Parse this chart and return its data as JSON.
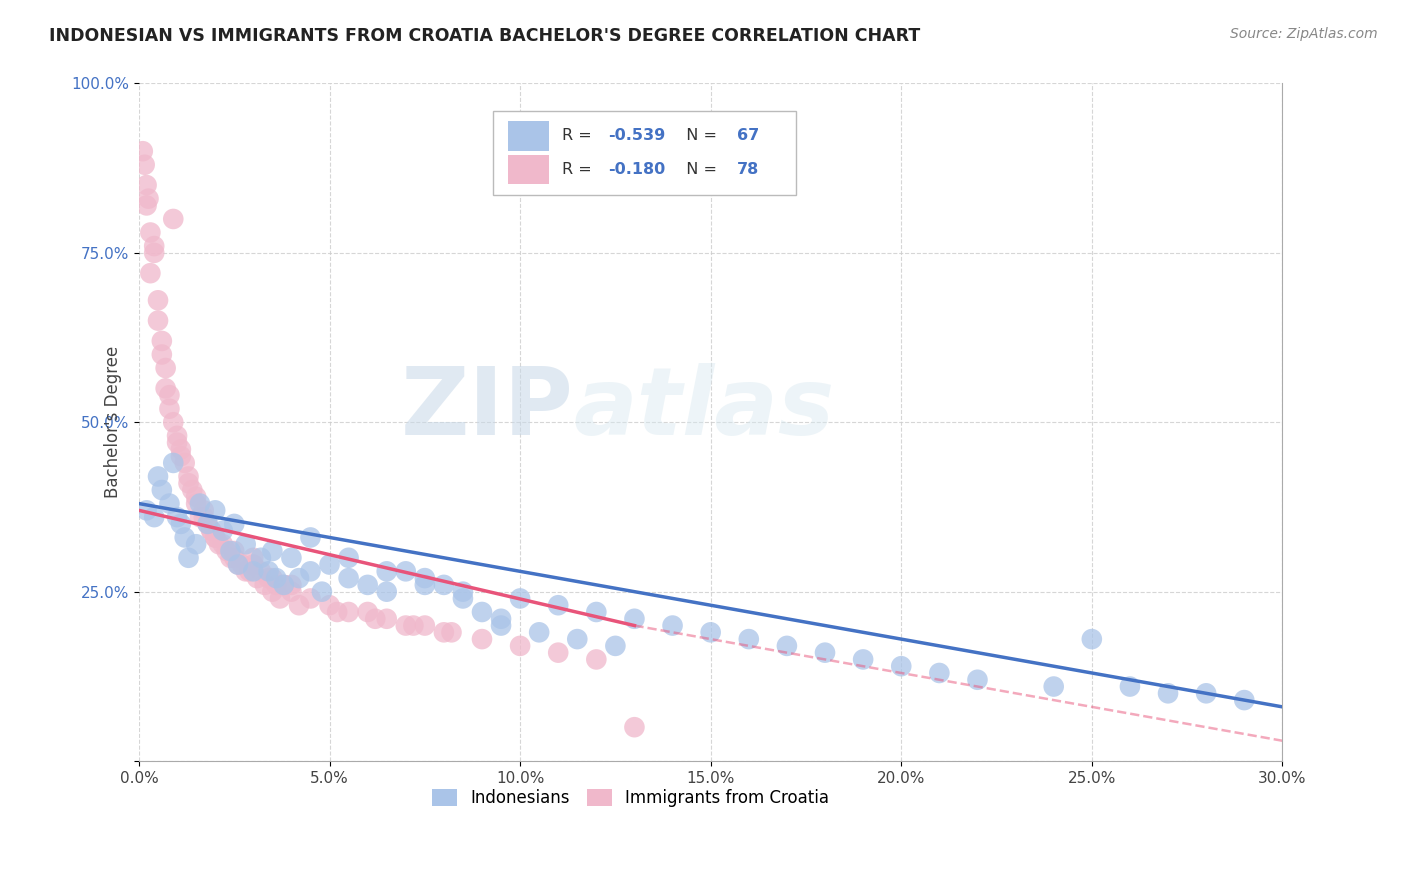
{
  "title": "INDONESIAN VS IMMIGRANTS FROM CROATIA BACHELOR'S DEGREE CORRELATION CHART",
  "source": "Source: ZipAtlas.com",
  "ylabel": "Bachelor's Degree",
  "blue_color": "#4472c4",
  "pink_color": "#e8547a",
  "blue_scatter_color": "#aac4e8",
  "pink_scatter_color": "#f0b8cb",
  "watermark_zip": "ZIP",
  "watermark_atlas": "atlas",
  "background_color": "#ffffff",
  "grid_color": "#cccccc",
  "blue_R": "-0.539",
  "blue_N": "67",
  "pink_R": "-0.180",
  "pink_N": "78",
  "blue_line": [
    [
      0.0,
      38.0
    ],
    [
      30.0,
      8.0
    ]
  ],
  "pink_line_solid": [
    [
      0.0,
      37.0
    ],
    [
      13.0,
      20.0
    ]
  ],
  "pink_line_dash": [
    [
      13.0,
      20.0
    ],
    [
      30.0,
      3.0
    ]
  ],
  "blue_scatter_x": [
    0.2,
    0.4,
    0.5,
    0.6,
    0.8,
    0.9,
    1.0,
    1.1,
    1.2,
    1.3,
    1.5,
    1.6,
    1.8,
    2.0,
    2.2,
    2.4,
    2.6,
    2.8,
    3.0,
    3.2,
    3.4,
    3.6,
    3.8,
    4.0,
    4.2,
    4.5,
    4.8,
    5.0,
    5.5,
    6.0,
    6.5,
    7.0,
    7.5,
    8.0,
    8.5,
    9.0,
    9.5,
    10.0,
    11.0,
    12.0,
    13.0,
    14.0,
    15.0,
    16.0,
    17.0,
    18.0,
    19.0,
    20.0,
    21.0,
    22.0,
    24.0,
    25.0,
    26.0,
    27.0,
    28.0,
    29.0,
    5.5,
    6.5,
    7.5,
    8.5,
    2.5,
    3.5,
    4.5,
    9.5,
    10.5,
    11.5,
    12.5
  ],
  "blue_scatter_y": [
    37.0,
    36.0,
    42.0,
    40.0,
    38.0,
    44.0,
    36.0,
    35.0,
    33.0,
    30.0,
    32.0,
    38.0,
    35.0,
    37.0,
    34.0,
    31.0,
    29.0,
    32.0,
    28.0,
    30.0,
    28.0,
    27.0,
    26.0,
    30.0,
    27.0,
    28.0,
    25.0,
    29.0,
    27.0,
    26.0,
    25.0,
    28.0,
    27.0,
    26.0,
    25.0,
    22.0,
    21.0,
    24.0,
    23.0,
    22.0,
    21.0,
    20.0,
    19.0,
    18.0,
    17.0,
    16.0,
    15.0,
    14.0,
    13.0,
    12.0,
    11.0,
    18.0,
    11.0,
    10.0,
    10.0,
    9.0,
    30.0,
    28.0,
    26.0,
    24.0,
    35.0,
    31.0,
    33.0,
    20.0,
    19.0,
    18.0,
    17.0
  ],
  "pink_scatter_x": [
    0.1,
    0.2,
    0.3,
    0.4,
    0.5,
    0.6,
    0.7,
    0.8,
    0.9,
    1.0,
    1.1,
    1.2,
    1.3,
    1.4,
    1.5,
    1.6,
    1.7,
    1.8,
    1.9,
    2.0,
    2.2,
    2.4,
    2.6,
    2.8,
    3.0,
    3.2,
    3.4,
    3.6,
    3.8,
    4.0,
    4.5,
    5.0,
    5.5,
    6.0,
    6.5,
    7.0,
    7.5,
    8.0,
    9.0,
    10.0,
    11.0,
    12.0,
    0.3,
    0.5,
    0.7,
    0.9,
    1.1,
    1.3,
    1.5,
    1.7,
    1.9,
    2.1,
    2.3,
    2.5,
    2.7,
    2.9,
    3.1,
    3.3,
    3.5,
    3.7,
    0.2,
    0.4,
    0.6,
    0.8,
    1.0,
    4.2,
    5.2,
    6.2,
    7.2,
    8.2,
    2.0,
    2.5,
    3.0,
    3.5,
    4.0,
    13.0,
    0.15,
    0.25
  ],
  "pink_scatter_y": [
    90.0,
    82.0,
    78.0,
    75.0,
    65.0,
    60.0,
    55.0,
    52.0,
    80.0,
    48.0,
    46.0,
    44.0,
    42.0,
    40.0,
    38.0,
    36.0,
    37.0,
    35.0,
    34.0,
    33.0,
    32.0,
    30.0,
    29.0,
    28.0,
    30.0,
    28.0,
    27.0,
    26.0,
    26.0,
    25.0,
    24.0,
    23.0,
    22.0,
    22.0,
    21.0,
    20.0,
    20.0,
    19.0,
    18.0,
    17.0,
    16.0,
    15.0,
    72.0,
    68.0,
    58.0,
    50.0,
    45.0,
    41.0,
    39.0,
    36.0,
    34.0,
    32.0,
    31.0,
    30.0,
    29.0,
    28.0,
    27.0,
    26.0,
    25.0,
    24.0,
    85.0,
    76.0,
    62.0,
    54.0,
    47.0,
    23.0,
    22.0,
    21.0,
    20.0,
    19.0,
    33.0,
    31.0,
    29.0,
    27.0,
    26.0,
    5.0,
    88.0,
    83.0
  ]
}
